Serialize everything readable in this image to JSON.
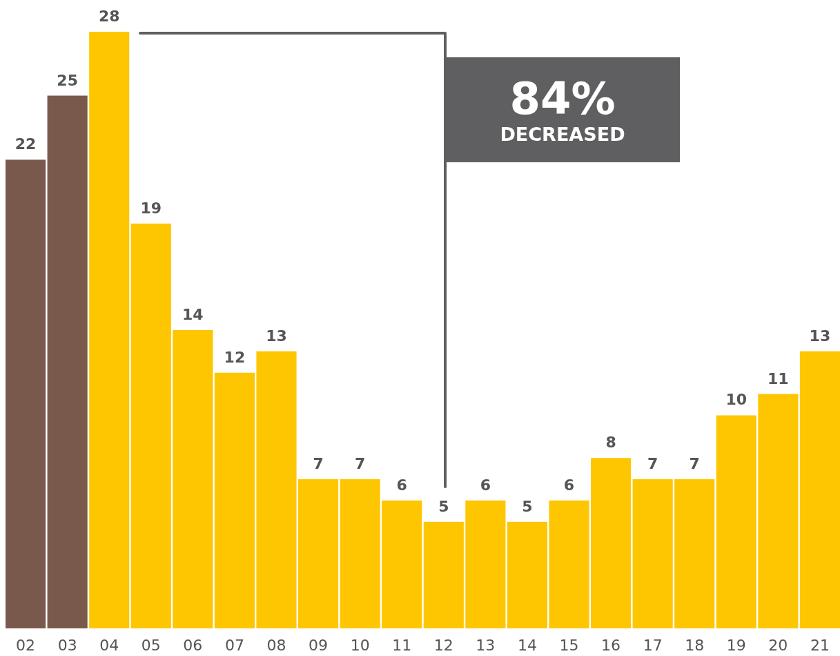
{
  "chart_data": {
    "type": "bar",
    "categories": [
      "02",
      "03",
      "04",
      "05",
      "06",
      "07",
      "08",
      "09",
      "10",
      "11",
      "12",
      "13",
      "14",
      "15",
      "16",
      "17",
      "18",
      "19",
      "20",
      "21"
    ],
    "values": [
      22,
      25,
      28,
      19,
      14,
      12,
      13,
      7,
      7,
      6,
      5,
      6,
      5,
      6,
      8,
      7,
      7,
      10,
      11,
      13
    ],
    "colors": [
      "#7a594d",
      "#7a594d",
      "#fec601",
      "#fec601",
      "#fec601",
      "#fec601",
      "#fec601",
      "#fec601",
      "#fec601",
      "#fec601",
      "#fec601",
      "#fec601",
      "#fec601",
      "#fec601",
      "#fec601",
      "#fec601",
      "#fec601",
      "#fec601",
      "#fec601",
      "#fec601"
    ],
    "data_labels": true,
    "annotations": [
      "84%",
      "DECREASED"
    ]
  }
}
